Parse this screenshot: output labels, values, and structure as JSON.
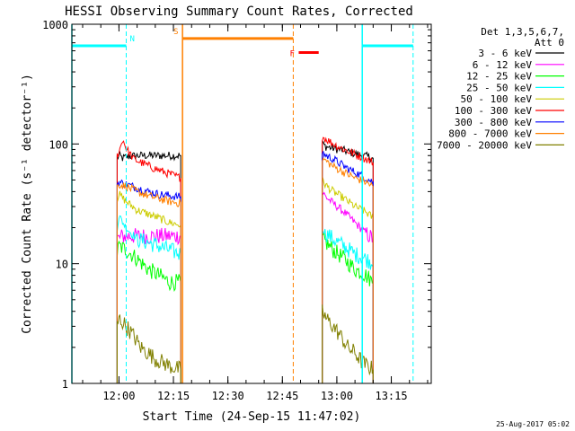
{
  "chart_data": {
    "type": "line",
    "title": "HESSI Observing Summary Count Rates, Corrected",
    "xlabel": "Start Time (24-Sep-15 11:47:02)",
    "ylabel": "Corrected Count Rate (s⁻¹ detector⁻¹)",
    "y_scale": "log",
    "ylim": [
      1,
      1000
    ],
    "xlim": [
      "11:47:02",
      "13:26:00"
    ],
    "x_ticks": [
      "12:00",
      "12:15",
      "12:30",
      "12:45",
      "13:00",
      "13:15"
    ],
    "y_ticks": [
      "1",
      "10",
      "100",
      "1000"
    ],
    "legend": {
      "placement": "right",
      "header": [
        "Det 1,3,5,6,7,",
        "Att 0"
      ]
    },
    "series": [
      {
        "name": "3 - 6 keV",
        "color": "#000000",
        "segments": [
          {
            "x": [
              "11:59:30",
              "12:00:00",
              "12:01:00",
              "12:03:00",
              "12:06:00",
              "12:10:00",
              "12:14:00",
              "12:17:00"
            ],
            "y": [
              76,
              80,
              76,
              79,
              80,
              80,
              80,
              80
            ]
          },
          {
            "x": [
              "12:56:00",
              "12:57:00",
              "12:59:00",
              "13:02:00",
              "13:05:00",
              "13:08:00",
              "13:10:00"
            ],
            "y": [
              100,
              95,
              92,
              88,
              83,
              79,
              76
            ]
          }
        ]
      },
      {
        "name": "6 - 12 keV",
        "color": "#ff00ff",
        "segments": [
          {
            "x": [
              "11:59:30",
              "12:01:00",
              "12:03:00",
              "12:06:00",
              "12:10:00",
              "12:14:00",
              "12:17:00"
            ],
            "y": [
              16,
              17,
              17,
              17,
              17,
              17,
              17
            ]
          },
          {
            "x": [
              "12:56:00",
              "12:57:00",
              "12:59:00",
              "13:02:00",
              "13:05:00",
              "13:08:00",
              "13:10:00"
            ],
            "y": [
              40,
              36,
              32,
              27,
              22,
              18,
              16
            ]
          }
        ]
      },
      {
        "name": "12 - 25 keV",
        "color": "#00ff00",
        "segments": [
          {
            "x": [
              "11:59:30",
              "12:00:00",
              "12:02:00",
              "12:05:00",
              "12:08:00",
              "12:11:00",
              "12:14:00",
              "12:17:00"
            ],
            "y": [
              12,
              14,
              13,
              11,
              9,
              8,
              7,
              7
            ]
          },
          {
            "x": [
              "12:56:00",
              "12:57:00",
              "12:59:00",
              "13:02:00",
              "13:05:00",
              "13:08:00",
              "13:10:00"
            ],
            "y": [
              16,
              15,
              13,
              11,
              9,
              8,
              7
            ]
          }
        ]
      },
      {
        "name": "25 - 50 keV",
        "color": "#00ffff",
        "segments": [
          {
            "x": [
              "11:59:30",
              "12:00:00",
              "12:02:00",
              "12:05:00",
              "12:08:00",
              "12:11:00",
              "12:14:00",
              "12:17:00"
            ],
            "y": [
              20,
              25,
              20,
              16,
              15,
              14,
              13,
              12
            ]
          },
          {
            "x": [
              "12:56:00",
              "12:57:00",
              "12:59:00",
              "13:02:00",
              "13:05:00",
              "13:08:00",
              "13:10:00"
            ],
            "y": [
              20,
              18,
              16,
              14,
              12,
              11,
              10
            ]
          }
        ]
      },
      {
        "name": "50 - 100 keV",
        "color": "#cccc00",
        "segments": [
          {
            "x": [
              "11:59:30",
              "12:00:00",
              "12:02:00",
              "12:05:00",
              "12:08:00",
              "12:11:00",
              "12:14:00",
              "12:17:00"
            ],
            "y": [
              35,
              38,
              33,
              28,
              26,
              24,
              22,
              21
            ]
          },
          {
            "x": [
              "12:56:00",
              "12:57:00",
              "12:59:00",
              "13:02:00",
              "13:05:00",
              "13:08:00",
              "13:10:00"
            ],
            "y": [
              50,
              45,
              40,
              35,
              30,
              27,
              24
            ]
          }
        ]
      },
      {
        "name": "100 - 300 keV",
        "color": "#ff0000",
        "segments": [
          {
            "x": [
              "11:59:30",
              "12:00:30",
              "12:01:00",
              "12:02:00",
              "12:04:00",
              "12:07:00",
              "12:10:00",
              "12:14:00",
              "12:17:00"
            ],
            "y": [
              80,
              95,
              110,
              92,
              75,
              68,
              62,
              56,
              52
            ]
          },
          {
            "x": [
              "12:56:00",
              "12:57:00",
              "12:59:00",
              "13:02:00",
              "13:05:00",
              "13:08:00",
              "13:10:00"
            ],
            "y": [
              115,
              110,
              100,
              90,
              82,
              75,
              70
            ]
          }
        ]
      },
      {
        "name": "300 - 800 keV",
        "color": "#0000ff",
        "segments": [
          {
            "x": [
              "11:59:30",
              "12:00:00",
              "12:02:00",
              "12:05:00",
              "12:08:00",
              "12:11:00",
              "12:14:00",
              "12:17:00"
            ],
            "y": [
              46,
              48,
              46,
              43,
              40,
              38,
              37,
              36
            ]
          },
          {
            "x": [
              "12:56:00",
              "12:57:00",
              "12:59:00",
              "13:02:00",
              "13:05:00",
              "13:08:00",
              "13:10:00"
            ],
            "y": [
              85,
              80,
              75,
              65,
              58,
              52,
              48
            ]
          }
        ]
      },
      {
        "name": "800 - 7000 keV",
        "color": "#ff8000",
        "segments": [
          {
            "x": [
              "11:59:30",
              "12:00:00",
              "12:02:00",
              "12:05:00",
              "12:08:00",
              "12:11:00",
              "12:14:00",
              "12:17:00"
            ],
            "y": [
              44,
              46,
              44,
              40,
              37,
              35,
              33,
              32
            ]
          },
          {
            "x": [
              "12:56:00",
              "12:57:00",
              "12:59:00",
              "13:02:00",
              "13:05:00",
              "13:08:00",
              "13:10:00"
            ],
            "y": [
              75,
              72,
              65,
              58,
              52,
              48,
              44
            ]
          }
        ]
      },
      {
        "name": "7000 - 20000 keV",
        "color": "#808000",
        "segments": [
          {
            "x": [
              "11:59:30",
              "12:00:00",
              "12:02:00",
              "12:04:00",
              "12:06:00",
              "12:08:00",
              "12:10:00",
              "12:12:00",
              "12:14:00",
              "12:17:00"
            ],
            "y": [
              3,
              3.5,
              3,
              2.5,
              2,
              1.8,
              1.6,
              1.5,
              1.4,
              1.3
            ]
          },
          {
            "x": [
              "12:56:00",
              "12:57:00",
              "12:59:00",
              "13:01:00",
              "13:03:00",
              "13:05:00",
              "13:07:00",
              "13:10:00"
            ],
            "y": [
              4,
              3.5,
              3,
              2.5,
              2,
              1.8,
              1.5,
              1.3
            ]
          }
        ]
      }
    ],
    "markers": [
      {
        "label": "N",
        "color": "#00ffff",
        "bar_start": "11:47:02",
        "bar_end": "12:02:00",
        "y": 660,
        "line": "12:02:00",
        "line_style": "dashed"
      },
      {
        "label": "",
        "color": "#00ffff",
        "bar_start": "13:07:00",
        "bar_end": "13:21:00",
        "y": 660,
        "line": "13:21:00",
        "line_style": "dashed"
      },
      {
        "label": "S",
        "color": "#ff8000",
        "bar_start": "12:17:30",
        "bar_end": "12:48:00",
        "y": 760,
        "line": "12:48:00",
        "line_style": "dashed"
      },
      {
        "label": "F",
        "color": "#ff0000",
        "bar_start": "12:49:30",
        "bar_end": "12:55:00",
        "y": 580,
        "line": "",
        "line_style": ""
      }
    ],
    "vertical_lines": [
      {
        "x": "11:47:02",
        "color": "#00ffff",
        "style": "solid"
      },
      {
        "x": "12:17:30",
        "color": "#ff8000",
        "style": "solid"
      },
      {
        "x": "13:07:00",
        "color": "#00ffff",
        "style": "solid"
      }
    ],
    "footer_date": "25-Aug-2017 05:02"
  }
}
